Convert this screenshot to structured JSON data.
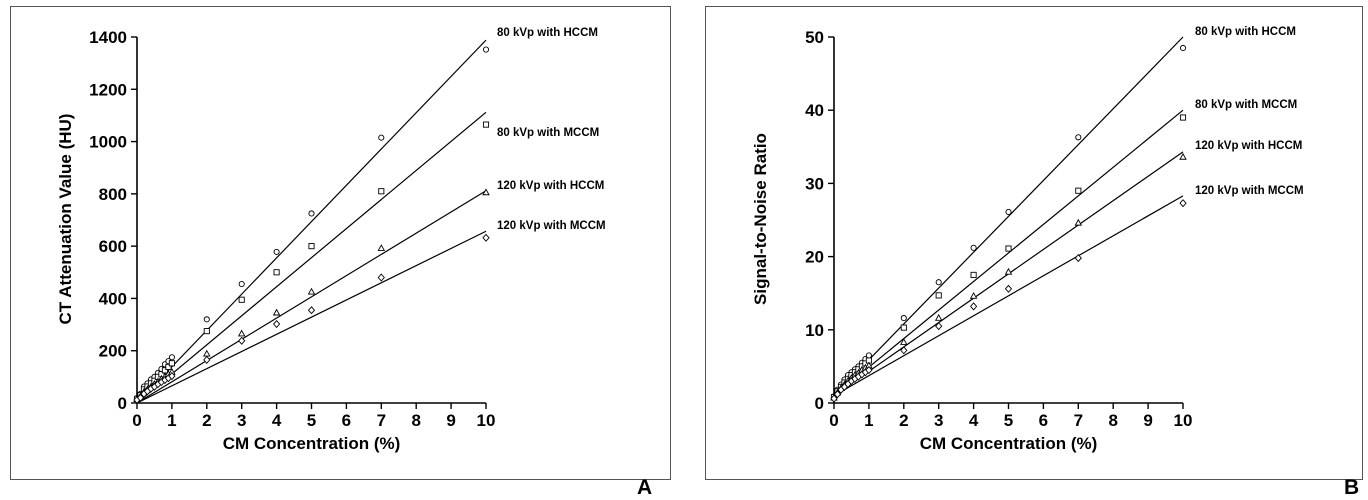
{
  "chart_data": [
    {
      "type": "scatter",
      "panel_label": "A",
      "xlabel": "CM Concentration (%)",
      "ylabel": "CT Attenuation Value (HU)",
      "xlim": [
        0,
        10
      ],
      "ylim": [
        0,
        1400
      ],
      "xticks": [
        0,
        1,
        2,
        3,
        4,
        5,
        6,
        7,
        8,
        9,
        10
      ],
      "yticks": [
        0,
        200,
        400,
        600,
        800,
        1000,
        1200,
        1400
      ],
      "grid": false,
      "legend": "inline labels at right end of fit lines",
      "x": [
        0,
        0.1,
        0.2,
        0.3,
        0.4,
        0.5,
        0.6,
        0.7,
        0.8,
        0.9,
        1,
        2,
        3,
        4,
        5,
        7,
        10
      ],
      "series": [
        {
          "name": "80 kVp with HCCM",
          "marker": "circle",
          "values": [
            18,
            35,
            63,
            75,
            90,
            100,
            115,
            130,
            148,
            160,
            175,
            320,
            455,
            578,
            725,
            1015,
            1352
          ],
          "fit": [
            0,
            1388
          ]
        },
        {
          "name": "80 kVp with MCCM",
          "marker": "square",
          "values": [
            16,
            30,
            52,
            63,
            75,
            85,
            100,
            110,
            125,
            138,
            152,
            275,
            395,
            500,
            600,
            810,
            1065
          ],
          "fit": [
            0,
            1112
          ]
        },
        {
          "name": "120 kVp with HCCM",
          "marker": "triangle",
          "values": [
            14,
            25,
            42,
            52,
            62,
            72,
            82,
            92,
            100,
            110,
            118,
            188,
            265,
            345,
            425,
            592,
            805
          ],
          "fit": [
            0,
            812
          ]
        },
        {
          "name": "120 kVp with MCCM",
          "marker": "diamond",
          "values": [
            12,
            20,
            35,
            45,
            55,
            62,
            72,
            80,
            88,
            95,
            103,
            165,
            238,
            302,
            355,
            480,
            632
          ],
          "fit": [
            0,
            657
          ]
        }
      ]
    },
    {
      "type": "scatter",
      "panel_label": "B",
      "xlabel": "CM Concentration (%)",
      "ylabel": "Signal-to-Noise Ratio",
      "xlim": [
        0,
        10
      ],
      "ylim": [
        0,
        50
      ],
      "xticks": [
        0,
        1,
        2,
        3,
        4,
        5,
        6,
        7,
        8,
        9,
        10
      ],
      "yticks": [
        0,
        10,
        20,
        30,
        40,
        50
      ],
      "grid": false,
      "legend": "inline labels at right end of fit lines",
      "x": [
        0,
        0.1,
        0.2,
        0.3,
        0.4,
        0.5,
        0.6,
        0.7,
        0.8,
        0.9,
        1,
        2,
        3,
        4,
        5,
        7,
        10
      ],
      "series": [
        {
          "name": "80 kVp with HCCM",
          "marker": "circle",
          "values": [
            0.9,
            1.8,
            2.5,
            3.2,
            3.8,
            4.2,
            4.6,
            5.0,
            5.5,
            6.0,
            6.5,
            11.6,
            16.5,
            21.2,
            26.1,
            36.3,
            48.5
          ],
          "fit": [
            1.0,
            50.0
          ]
        },
        {
          "name": "80 kVp with MCCM",
          "marker": "square",
          "values": [
            0.8,
            1.6,
            2.2,
            2.8,
            3.3,
            3.8,
            4.2,
            4.6,
            5.0,
            5.4,
            5.8,
            10.3,
            14.7,
            17.5,
            21.1,
            29.0,
            39.0
          ],
          "fit": [
            1.0,
            40.0
          ]
        },
        {
          "name": "120 kVp with HCCM",
          "marker": "triangle",
          "values": [
            0.7,
            1.4,
            2.0,
            2.5,
            3.0,
            3.4,
            3.8,
            4.1,
            4.5,
            4.8,
            5.1,
            8.3,
            11.6,
            14.6,
            17.9,
            24.6,
            33.6
          ],
          "fit": [
            1.0,
            34.3
          ]
        },
        {
          "name": "120 kVp with MCCM",
          "marker": "diamond",
          "values": [
            0.6,
            1.2,
            1.8,
            2.2,
            2.6,
            3.0,
            3.3,
            3.6,
            3.9,
            4.2,
            4.5,
            7.2,
            10.5,
            13.2,
            15.6,
            19.8,
            27.3
          ],
          "fit": [
            1.0,
            28.3
          ]
        }
      ]
    }
  ]
}
